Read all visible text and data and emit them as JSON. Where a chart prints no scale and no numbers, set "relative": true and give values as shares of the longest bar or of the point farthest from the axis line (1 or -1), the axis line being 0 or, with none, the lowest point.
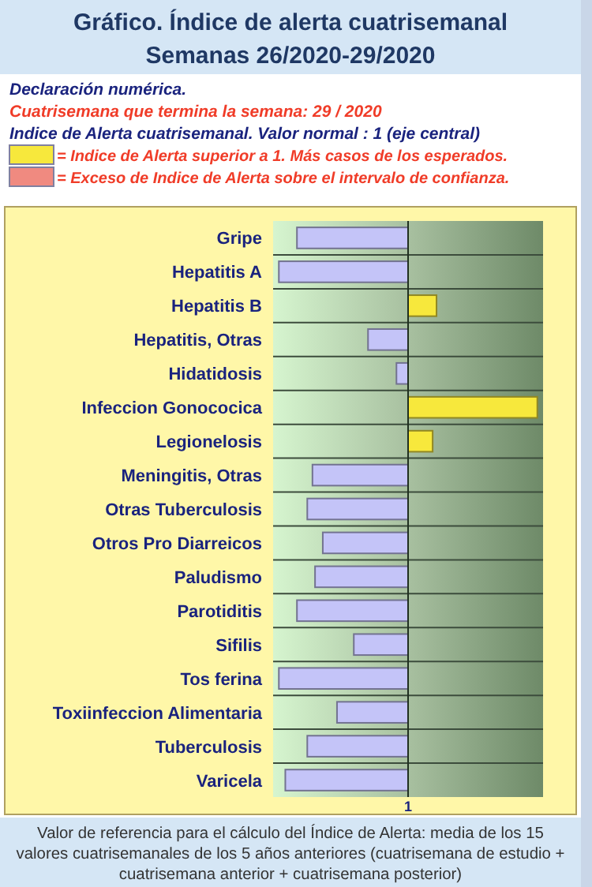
{
  "chart_data": {
    "type": "bar",
    "orientation": "horizontal",
    "relative": true,
    "title": "Gráfico. Índice de alerta cuatrisemanal",
    "subtitle": "Semanas 26/2020-29/2020",
    "categories": [
      "Gripe",
      "Hepatitis A",
      "Hepatitis B",
      "Hepatitis, Otras",
      "Hidatidosis",
      "Infeccion Gonococica",
      "Legionelosis",
      "Meningitis, Otras",
      "Otras Tuberculosis",
      "Otros Pro Diarreicos",
      "Paludismo",
      "Parotiditis",
      "Sifilis",
      "Tos ferina",
      "Toxiinfeccion Alimentaria",
      "Tuberculosis",
      "Varicela"
    ],
    "series": [
      {
        "color": "#c4c4f8",
        "values": [
          -0.86,
          -1,
          null,
          -0.31,
          -0.09,
          null,
          null,
          -0.74,
          -0.78,
          -0.66,
          -0.72,
          -0.86,
          -0.42,
          -1,
          -0.55,
          -0.78,
          -0.95
        ]
      },
      {
        "name": "= Indice de Alerta superior a 1. Más casos de los esperados.",
        "color": "#f7e83c",
        "values": [
          null,
          null,
          0.22,
          null,
          null,
          1,
          0.19,
          null,
          null,
          null,
          null,
          null,
          null,
          null,
          null,
          null,
          null
        ]
      },
      {
        "name": "= Exceso de Indice de Alerta sobre el intervalo de confianza.",
        "color": "#f08a80",
        "values": [
          null,
          null,
          null,
          null,
          null,
          null,
          null,
          null,
          null,
          null,
          null,
          null,
          null,
          null,
          null,
          null,
          null
        ]
      }
    ],
    "legend": "top",
    "grid": "y",
    "annotations": [
      "Declaración numérica.",
      "Cuatrisemana que termina la semana:   29   / 2020",
      "Indice de Alerta cuatrisemanal. Valor normal : 1 (eje central)",
      "1",
      "Valor de referencia para el cálculo del Índice de Alerta: media de los 15 valores cuatrisemanales de los 5 años anteriores (cuatrisemana de estudio + cuatrisemana anterior + cuatrisemana posterior)"
    ]
  }
}
